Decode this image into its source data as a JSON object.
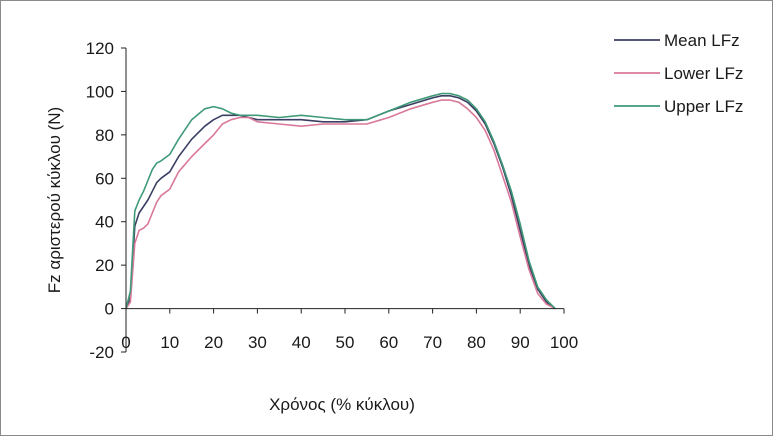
{
  "chart_data": {
    "type": "line",
    "title": "",
    "xlabel": "Χρόνος (% κύκλου)",
    "ylabel": "Fz αριστερού κύκλου (N)",
    "xlim": [
      0,
      100
    ],
    "ylim": [
      -20,
      120
    ],
    "x_ticks": [
      "0",
      "10",
      "20",
      "30",
      "40",
      "50",
      "60",
      "70",
      "80",
      "90",
      "100"
    ],
    "y_ticks": [
      "-20",
      "0",
      "20",
      "40",
      "60",
      "80",
      "100",
      "120"
    ],
    "grid": false,
    "legend_position": "top-right",
    "series": [
      {
        "name": "Mean LFz",
        "color": "#3b3f63",
        "x": [
          0,
          1,
          2,
          3,
          4,
          5,
          6,
          7,
          8,
          10,
          12,
          15,
          18,
          20,
          22,
          24,
          26,
          28,
          30,
          35,
          40,
          45,
          50,
          55,
          60,
          65,
          70,
          72,
          74,
          76,
          78,
          80,
          82,
          84,
          86,
          88,
          90,
          92,
          94,
          96,
          98
        ],
        "y": [
          0,
          5,
          38,
          44,
          47,
          50,
          54,
          58,
          60,
          63,
          70,
          78,
          84,
          87,
          89,
          89,
          89,
          88,
          87,
          87,
          87,
          86,
          86,
          87,
          91,
          94,
          97,
          98,
          98,
          97,
          95,
          91,
          85,
          76,
          65,
          52,
          36,
          20,
          9,
          3,
          0
        ]
      },
      {
        "name": "Lower LFz",
        "color": "#d9799a",
        "x": [
          0,
          1,
          2,
          3,
          4,
          5,
          6,
          7,
          8,
          10,
          12,
          15,
          18,
          20,
          22,
          24,
          26,
          28,
          30,
          35,
          40,
          45,
          50,
          55,
          60,
          65,
          70,
          72,
          74,
          76,
          78,
          80,
          82,
          84,
          86,
          88,
          90,
          92,
          94,
          96,
          98
        ],
        "y": [
          0,
          3,
          30,
          36,
          37,
          39,
          44,
          49,
          52,
          55,
          63,
          70,
          76,
          80,
          85,
          87,
          88,
          88,
          86,
          85,
          84,
          85,
          85,
          85,
          88,
          92,
          95,
          96,
          96,
          95,
          92,
          88,
          82,
          73,
          61,
          49,
          33,
          18,
          7,
          2,
          0
        ]
      },
      {
        "name": "Upper LFz",
        "color": "#3f9a78",
        "x": [
          0,
          1,
          2,
          3,
          4,
          5,
          6,
          7,
          8,
          10,
          12,
          15,
          18,
          20,
          22,
          24,
          26,
          28,
          30,
          35,
          40,
          45,
          50,
          55,
          60,
          65,
          70,
          72,
          74,
          76,
          78,
          80,
          82,
          84,
          86,
          88,
          90,
          92,
          94,
          96,
          98
        ],
        "y": [
          0,
          8,
          45,
          50,
          54,
          59,
          64,
          67,
          68,
          71,
          78,
          87,
          92,
          93,
          92,
          90,
          89,
          89,
          89,
          88,
          89,
          88,
          87,
          87,
          91,
          95,
          98,
          99,
          99,
          98,
          96,
          92,
          86,
          77,
          66,
          54,
          39,
          22,
          10,
          4,
          0
        ]
      }
    ]
  }
}
